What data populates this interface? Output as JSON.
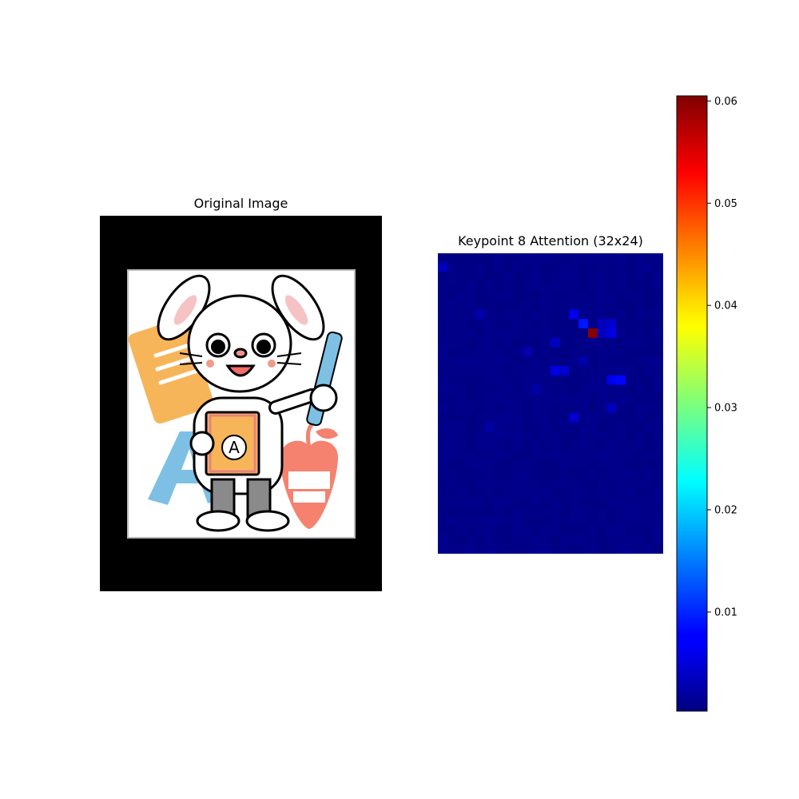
{
  "chart_data": [
    {
      "type": "image",
      "title": "Original Image",
      "image": {
        "subject": "cartoon white rabbit student holding a book and a ruler",
        "book_letter": "A",
        "background_letter": "A"
      }
    },
    {
      "type": "heatmap",
      "title": "Keypoint 8 Attention (32x24)",
      "rows": 32,
      "cols": 24,
      "colormap": "jet",
      "background_level": 0.0008,
      "hotspots": [
        {
          "row": 8,
          "col": 16,
          "value": 0.06
        },
        {
          "row": 7,
          "col": 15,
          "value": 0.009
        },
        {
          "row": 6,
          "col": 14,
          "value": 0.007
        },
        {
          "row": 7,
          "col": 18,
          "value": 0.005
        },
        {
          "row": 8,
          "col": 18,
          "value": 0.006
        },
        {
          "row": 8,
          "col": 17,
          "value": 0.004
        },
        {
          "row": 7,
          "col": 17,
          "value": 0.004
        },
        {
          "row": 9,
          "col": 12,
          "value": 0.004
        },
        {
          "row": 12,
          "col": 12,
          "value": 0.006
        },
        {
          "row": 12,
          "col": 13,
          "value": 0.005
        },
        {
          "row": 13,
          "col": 19,
          "value": 0.008
        },
        {
          "row": 13,
          "col": 18,
          "value": 0.007
        },
        {
          "row": 16,
          "col": 18,
          "value": 0.004
        },
        {
          "row": 17,
          "col": 14,
          "value": 0.005
        },
        {
          "row": 11,
          "col": 15,
          "value": 0.003
        },
        {
          "row": 10,
          "col": 9,
          "value": 0.003
        },
        {
          "row": 6,
          "col": 4,
          "value": 0.003
        },
        {
          "row": 14,
          "col": 10,
          "value": 0.0025
        },
        {
          "row": 18,
          "col": 5,
          "value": 0.0025
        },
        {
          "row": 1,
          "col": 0,
          "value": 0.004
        }
      ],
      "colorbar": {
        "min": 0.0003,
        "max": 0.0605,
        "ticks": [
          0.01,
          0.02,
          0.03,
          0.04,
          0.05,
          0.06
        ],
        "tick_labels": [
          "0.01",
          "0.02",
          "0.03",
          "0.04",
          "0.05",
          "0.06"
        ]
      }
    }
  ]
}
